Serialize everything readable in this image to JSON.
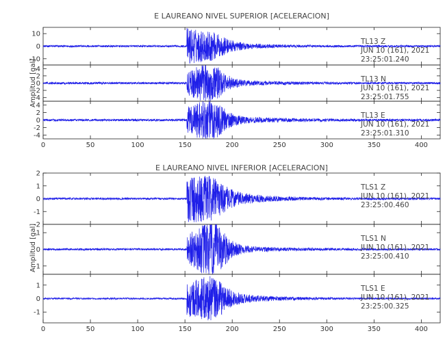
{
  "chart_data": [
    {
      "type": "line",
      "title": "E LAUREANO NIVEL SUPERIOR [ACELERACION]",
      "ylabel": "Amplitud [gal]",
      "xlabel": "",
      "xlim": [
        0,
        420
      ],
      "xticks": [
        0,
        50,
        100,
        150,
        200,
        250,
        300,
        350,
        400
      ],
      "grid": false,
      "line_color": "#1f1fe8",
      "series": [
        {
          "name": "TL13 Z",
          "station": "TL13",
          "component": "Z",
          "date": "JUN 10 (161), 2021",
          "time": "23:25:01.240",
          "ylim": [
            -15,
            15
          ],
          "yticks": [
            {
              "v": 10,
              "t": "10"
            },
            {
              "v": 0,
              "t": "0"
            },
            {
              "v": -10,
              "t": "-10"
            }
          ],
          "onset": 152,
          "peak": 14.5,
          "decay": 30,
          "noise": 0.8,
          "second_onset": 180,
          "second_amp": 5
        },
        {
          "name": "TL13 N",
          "station": "TL13",
          "component": "N",
          "date": "JUN 10 (161), 2021",
          "time": "23:25:01.755",
          "ylim": [
            -5,
            5
          ],
          "yticks": [
            {
              "v": 4,
              "t": "4"
            },
            {
              "v": 2,
              "t": "2"
            },
            {
              "v": 0,
              "t": "0"
            },
            {
              "v": -2,
              "t": "-2"
            },
            {
              "v": -4,
              "t": "-4"
            }
          ],
          "onset": 152,
          "peak": 2.4,
          "decay": 40,
          "noise": 0.3,
          "second_onset": 178,
          "second_amp": 4.2
        },
        {
          "name": "TL13 E",
          "station": "TL13",
          "component": "E",
          "date": "JUN 10 (161), 2021",
          "time": "23:25:01.310",
          "ylim": [
            -5,
            5
          ],
          "yticks": [
            {
              "v": 4,
              "t": "4"
            },
            {
              "v": 2,
              "t": "2"
            },
            {
              "v": 0,
              "t": "0"
            },
            {
              "v": -2,
              "t": "-2"
            },
            {
              "v": -4,
              "t": "-4"
            }
          ],
          "onset": 152,
          "peak": 2.5,
          "decay": 45,
          "noise": 0.3,
          "second_onset": 178,
          "second_amp": 4.3
        }
      ]
    },
    {
      "type": "line",
      "title": "E LAUREANO NIVEL INFERIOR [ACELERACION]",
      "ylabel": "Amplitud [gal]",
      "xlabel": "",
      "xlim": [
        0,
        420
      ],
      "xticks": [
        0,
        50,
        100,
        150,
        200,
        250,
        300,
        350,
        400
      ],
      "grid": false,
      "line_color": "#1f1fe8",
      "series": [
        {
          "name": "TLS1 Z",
          "station": "TLS1",
          "component": "Z",
          "date": "JUN 10 (161), 2021",
          "time": "23:25:00.460",
          "ylim": [
            -2,
            2
          ],
          "yticks": [
            {
              "v": 2,
              "t": "2"
            },
            {
              "v": 1,
              "t": "1"
            },
            {
              "v": 0,
              "t": "0"
            },
            {
              "v": -1,
              "t": "-1"
            },
            {
              "v": -2,
              "t": "-2"
            }
          ],
          "onset": 152,
          "peak": 2.0,
          "decay": 35,
          "noise": 0.08,
          "second_onset": 180,
          "second_amp": 0.7
        },
        {
          "name": "TLS1 N",
          "station": "TLS1",
          "component": "N",
          "date": "JUN 10 (161), 2021",
          "time": "23:25:00.410",
          "ylim": [
            -1.5,
            1.5
          ],
          "yticks": [
            {
              "v": 1,
              "t": "1"
            },
            {
              "v": 0,
              "t": "0"
            },
            {
              "v": -1,
              "t": "-1"
            }
          ],
          "onset": 152,
          "peak": 0.7,
          "decay": 40,
          "noise": 0.06,
          "second_onset": 180,
          "second_amp": 1.4
        },
        {
          "name": "TLS1 E",
          "station": "TLS1",
          "component": "E",
          "date": "JUN 10 (161), 2021",
          "time": "23:25:00.325",
          "ylim": [
            -1.8,
            1.8
          ],
          "yticks": [
            {
              "v": 1,
              "t": "1"
            },
            {
              "v": 0,
              "t": "0"
            },
            {
              "v": -1,
              "t": "-1"
            }
          ],
          "onset": 152,
          "peak": 1.2,
          "decay": 40,
          "noise": 0.06,
          "second_onset": 180,
          "second_amp": 1.0
        }
      ]
    }
  ]
}
